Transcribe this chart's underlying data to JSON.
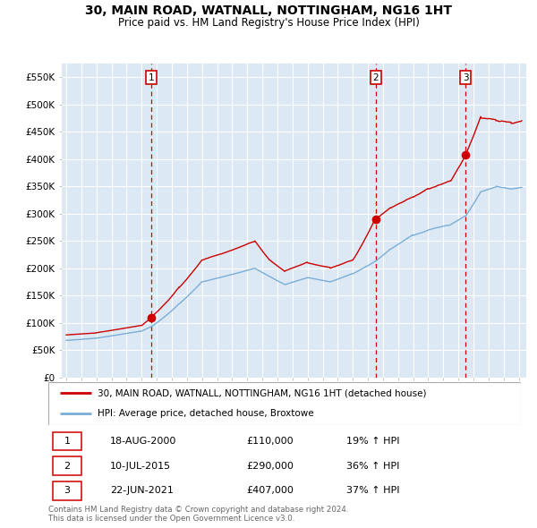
{
  "title": "30, MAIN ROAD, WATNALL, NOTTINGHAM, NG16 1HT",
  "subtitle": "Price paid vs. HM Land Registry's House Price Index (HPI)",
  "bg_color": "#dce9f5",
  "grid_color": "#ffffff",
  "red_line_color": "#cc0000",
  "blue_line_color": "#7aaed6",
  "yticks": [
    0,
    50000,
    100000,
    150000,
    200000,
    250000,
    300000,
    350000,
    400000,
    450000,
    500000,
    550000
  ],
  "ytick_labels": [
    "£0",
    "£50K",
    "£100K",
    "£150K",
    "£200K",
    "£250K",
    "£300K",
    "£350K",
    "£400K",
    "£450K",
    "£500K",
    "£550K"
  ],
  "xmin": 1994.7,
  "xmax": 2025.5,
  "ymin": 0,
  "ymax": 575000,
  "sale_dates_decimal": [
    2000.63,
    2015.52,
    2021.47
  ],
  "sale_prices": [
    110000,
    290000,
    407000
  ],
  "sale_labels": [
    "1",
    "2",
    "3"
  ],
  "sale_date_strs": [
    "18-AUG-2000",
    "10-JUL-2015",
    "22-JUN-2021"
  ],
  "sale_price_strs": [
    "£110,000",
    "£290,000",
    "£407,000"
  ],
  "sale_hpi_strs": [
    "19% ↑ HPI",
    "36% ↑ HPI",
    "37% ↑ HPI"
  ],
  "legend_red": "30, MAIN ROAD, WATNALL, NOTTINGHAM, NG16 1HT (detached house)",
  "legend_blue": "HPI: Average price, detached house, Broxtowe",
  "footnote1": "Contains HM Land Registry data © Crown copyright and database right 2024.",
  "footnote2": "This data is licensed under the Open Government Licence v3.0."
}
